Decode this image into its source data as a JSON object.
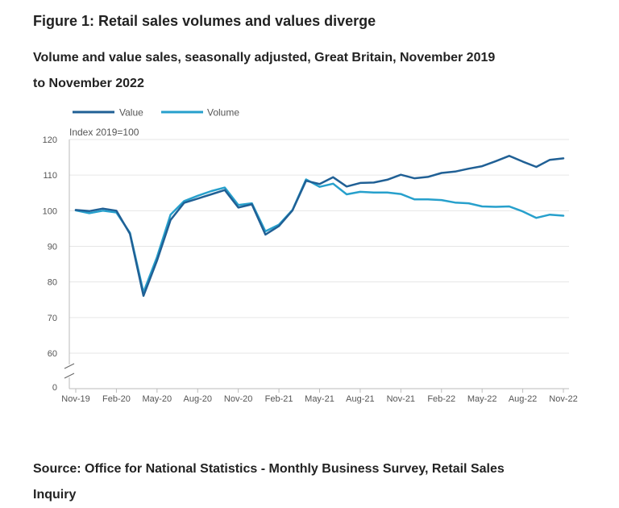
{
  "title": "Figure 1: Retail sales volumes and values diverge",
  "subtitle": "Volume and value sales, seasonally adjusted, Great Britain, November 2019 to November 2022",
  "source": "Source: Office for National Statistics - Monthly Business Survey, Retail Sales Inquiry",
  "colors": {
    "value": "#206095",
    "volume": "#27a0cc",
    "grid": "#e6e6e6",
    "axis": "#bbbbbb"
  },
  "chart_data": {
    "type": "line",
    "unit_label": "Index 2019=100",
    "ylim": [
      60,
      120
    ],
    "y_ticks": [
      "0",
      "60",
      "70",
      "80",
      "90",
      "100",
      "110",
      "120"
    ],
    "y_axis_break": true,
    "grid": true,
    "legend_position": "top-left",
    "x": [
      "Nov-19",
      "Dec-19",
      "Jan-20",
      "Feb-20",
      "Mar-20",
      "Apr-20",
      "May-20",
      "Jun-20",
      "Jul-20",
      "Aug-20",
      "Sep-20",
      "Oct-20",
      "Nov-20",
      "Dec-20",
      "Jan-21",
      "Feb-21",
      "Mar-21",
      "Apr-21",
      "May-21",
      "Jun-21",
      "Jul-21",
      "Aug-21",
      "Sep-21",
      "Oct-21",
      "Nov-21",
      "Dec-21",
      "Jan-22",
      "Feb-22",
      "Mar-22",
      "Apr-22",
      "May-22",
      "Jun-22",
      "Jul-22",
      "Aug-22",
      "Sep-22",
      "Oct-22",
      "Nov-22"
    ],
    "x_ticks": [
      "Nov-19",
      "Feb-20",
      "May-20",
      "Aug-20",
      "Nov-20",
      "Feb-21",
      "May-21",
      "Aug-21",
      "Nov-21",
      "Feb-22",
      "May-22",
      "Aug-22",
      "Nov-22"
    ],
    "series": [
      {
        "name": "Value",
        "values": [
          100.2,
          99.9,
          100.6,
          100.0,
          93.5,
          76.1,
          86.0,
          97.4,
          102.2,
          103.4,
          104.6,
          105.8,
          100.9,
          101.8,
          93.3,
          95.7,
          100.1,
          108.4,
          107.5,
          109.4,
          106.8,
          107.8,
          107.9,
          108.7,
          110.1,
          109.1,
          109.5,
          110.6,
          111.0,
          111.8,
          112.5,
          113.9,
          115.4,
          113.8,
          112.3,
          114.3,
          114.7
        ]
      },
      {
        "name": "Volume",
        "values": [
          100.1,
          99.3,
          100.0,
          99.5,
          93.8,
          77.1,
          87.0,
          98.9,
          102.7,
          104.2,
          105.5,
          106.5,
          101.6,
          102.1,
          94.2,
          96.1,
          100.2,
          108.8,
          106.7,
          107.6,
          104.6,
          105.3,
          105.1,
          105.1,
          104.7,
          103.2,
          103.2,
          103.0,
          102.3,
          102.1,
          101.2,
          101.1,
          101.2,
          99.8,
          98.0,
          98.9,
          98.6
        ]
      }
    ]
  }
}
